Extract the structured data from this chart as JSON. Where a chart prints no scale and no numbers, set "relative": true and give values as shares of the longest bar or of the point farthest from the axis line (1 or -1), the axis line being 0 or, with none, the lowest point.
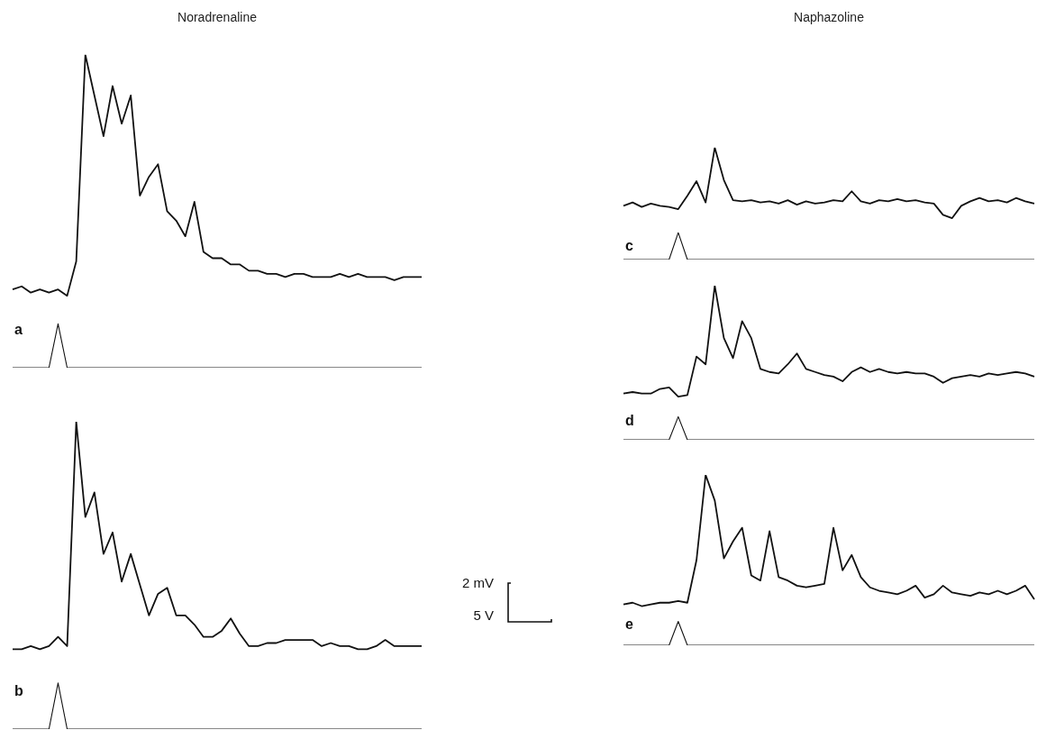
{
  "chart_data": [
    {
      "type": "line",
      "title": "Noradrenaline",
      "relative": true,
      "legend": false,
      "tick_labels": false,
      "marker": "none",
      "annotations": [
        "a"
      ],
      "categories": [
        null,
        null,
        null,
        null,
        null,
        null,
        null,
        null,
        null,
        null,
        null,
        null,
        null,
        null,
        null,
        null,
        null,
        null,
        null,
        null,
        null,
        null,
        null,
        null,
        null,
        null,
        null,
        null,
        null,
        null,
        null,
        null,
        null,
        null,
        null,
        null,
        null,
        null,
        null,
        null,
        null,
        null,
        null,
        null,
        null,
        null
      ],
      "series": [
        {
          "color": "#111111",
          "values": [
            0.25,
            0.26,
            0.24,
            0.25,
            0.24,
            0.25,
            0.23,
            0.34,
            1,
            0.87,
            0.74,
            0.9,
            0.78,
            0.87,
            0.55,
            0.61,
            0.65,
            0.5,
            0.47,
            0.42,
            0.53,
            0.37,
            0.35,
            0.35,
            0.33,
            0.33,
            0.31,
            0.31,
            0.3,
            0.3,
            0.29,
            0.3,
            0.3,
            0.29,
            0.29,
            0.29,
            0.3,
            0.29,
            0.3,
            0.29,
            0.29,
            0.29,
            0.28,
            0.29,
            0.29,
            0.29
          ]
        },
        {
          "color": "#111111",
          "values": [
            0,
            0,
            0,
            0,
            0,
            0.14,
            0,
            0,
            0,
            0,
            0,
            0,
            0,
            0,
            0,
            0,
            0,
            0,
            0,
            0,
            0,
            0,
            0,
            0,
            0,
            0,
            0,
            0,
            0,
            0,
            0,
            0,
            0,
            0,
            0,
            0,
            0,
            0,
            0,
            0,
            0,
            0,
            0,
            0,
            0,
            0
          ]
        }
      ]
    },
    {
      "type": "line",
      "relative": true,
      "legend": false,
      "tick_labels": false,
      "marker": "none",
      "annotations": [
        "b"
      ],
      "categories": [
        null,
        null,
        null,
        null,
        null,
        null,
        null,
        null,
        null,
        null,
        null,
        null,
        null,
        null,
        null,
        null,
        null,
        null,
        null,
        null,
        null,
        null,
        null,
        null,
        null,
        null,
        null,
        null,
        null,
        null,
        null,
        null,
        null,
        null,
        null,
        null,
        null,
        null,
        null,
        null,
        null,
        null,
        null,
        null,
        null,
        null
      ],
      "series": [
        {
          "color": "#111111",
          "values": [
            0.26,
            0.26,
            0.27,
            0.26,
            0.27,
            0.3,
            0.27,
            1,
            0.69,
            0.77,
            0.57,
            0.64,
            0.48,
            0.57,
            0.47,
            0.37,
            0.44,
            0.46,
            0.37,
            0.37,
            0.34,
            0.3,
            0.3,
            0.32,
            0.36,
            0.31,
            0.27,
            0.27,
            0.28,
            0.28,
            0.29,
            0.29,
            0.29,
            0.29,
            0.27,
            0.28,
            0.27,
            0.27,
            0.26,
            0.26,
            0.27,
            0.29,
            0.27,
            0.27,
            0.27,
            0.27
          ]
        },
        {
          "color": "#111111",
          "values": [
            0,
            0,
            0,
            0,
            0,
            0.15,
            0,
            0,
            0,
            0,
            0,
            0,
            0,
            0,
            0,
            0,
            0,
            0,
            0,
            0,
            0,
            0,
            0,
            0,
            0,
            0,
            0,
            0,
            0,
            0,
            0,
            0,
            0,
            0,
            0,
            0,
            0,
            0,
            0,
            0,
            0,
            0,
            0,
            0,
            0,
            0
          ]
        }
      ]
    },
    {
      "type": "line",
      "title": "Naphazoline",
      "relative": true,
      "legend": false,
      "tick_labels": false,
      "marker": "none",
      "annotations": [
        "c"
      ],
      "categories": [
        null,
        null,
        null,
        null,
        null,
        null,
        null,
        null,
        null,
        null,
        null,
        null,
        null,
        null,
        null,
        null,
        null,
        null,
        null,
        null,
        null,
        null,
        null,
        null,
        null,
        null,
        null,
        null,
        null,
        null,
        null,
        null,
        null,
        null,
        null,
        null,
        null,
        null,
        null,
        null,
        null,
        null,
        null,
        null,
        null,
        null
      ],
      "series": [
        {
          "color": "#111111",
          "values": [
            0.48,
            0.51,
            0.47,
            0.5,
            0.48,
            0.47,
            0.45,
            0.57,
            0.7,
            0.51,
            1,
            0.71,
            0.53,
            0.52,
            0.53,
            0.51,
            0.52,
            0.5,
            0.53,
            0.49,
            0.52,
            0.5,
            0.51,
            0.53,
            0.52,
            0.61,
            0.52,
            0.5,
            0.53,
            0.52,
            0.54,
            0.52,
            0.53,
            0.51,
            0.5,
            0.4,
            0.37,
            0.48,
            0.52,
            0.55,
            0.52,
            0.53,
            0.51,
            0.55,
            0.52,
            0.5
          ]
        },
        {
          "color": "#111111",
          "values": [
            0,
            0,
            0,
            0,
            0,
            0,
            0.24,
            0,
            0,
            0,
            0,
            0,
            0,
            0,
            0,
            0,
            0,
            0,
            0,
            0,
            0,
            0,
            0,
            0,
            0,
            0,
            0,
            0,
            0,
            0,
            0,
            0,
            0,
            0,
            0,
            0,
            0,
            0,
            0,
            0,
            0,
            0,
            0,
            0,
            0,
            0
          ]
        }
      ]
    },
    {
      "type": "line",
      "relative": true,
      "legend": false,
      "tick_labels": false,
      "marker": "none",
      "annotations": [
        "d"
      ],
      "categories": [
        null,
        null,
        null,
        null,
        null,
        null,
        null,
        null,
        null,
        null,
        null,
        null,
        null,
        null,
        null,
        null,
        null,
        null,
        null,
        null,
        null,
        null,
        null,
        null,
        null,
        null,
        null,
        null,
        null,
        null,
        null,
        null,
        null,
        null,
        null,
        null,
        null,
        null,
        null,
        null,
        null,
        null,
        null,
        null,
        null,
        null
      ],
      "series": [
        {
          "color": "#111111",
          "values": [
            0.3,
            0.31,
            0.3,
            0.3,
            0.33,
            0.34,
            0.28,
            0.29,
            0.54,
            0.49,
            1,
            0.66,
            0.53,
            0.77,
            0.66,
            0.46,
            0.44,
            0.43,
            0.49,
            0.56,
            0.46,
            0.44,
            0.42,
            0.41,
            0.38,
            0.44,
            0.47,
            0.44,
            0.46,
            0.44,
            0.43,
            0.44,
            0.43,
            0.43,
            0.41,
            0.37,
            0.4,
            0.41,
            0.42,
            0.41,
            0.43,
            0.42,
            0.43,
            0.44,
            0.43,
            0.41
          ]
        },
        {
          "color": "#111111",
          "values": [
            0,
            0,
            0,
            0,
            0,
            0,
            0.15,
            0,
            0,
            0,
            0,
            0,
            0,
            0,
            0,
            0,
            0,
            0,
            0,
            0,
            0,
            0,
            0,
            0,
            0,
            0,
            0,
            0,
            0,
            0,
            0,
            0,
            0,
            0,
            0,
            0,
            0,
            0,
            0,
            0,
            0,
            0,
            0,
            0,
            0,
            0
          ]
        }
      ]
    },
    {
      "type": "line",
      "relative": true,
      "legend": false,
      "tick_labels": false,
      "marker": "none",
      "annotations": [
        "e"
      ],
      "categories": [
        null,
        null,
        null,
        null,
        null,
        null,
        null,
        null,
        null,
        null,
        null,
        null,
        null,
        null,
        null,
        null,
        null,
        null,
        null,
        null,
        null,
        null,
        null,
        null,
        null,
        null,
        null,
        null,
        null,
        null,
        null,
        null,
        null,
        null,
        null,
        null,
        null,
        null,
        null,
        null,
        null,
        null,
        null,
        null,
        null,
        null
      ],
      "series": [
        {
          "color": "#111111",
          "values": [
            0.24,
            0.25,
            0.23,
            0.24,
            0.25,
            0.25,
            0.26,
            0.25,
            0.5,
            1,
            0.85,
            0.51,
            0.61,
            0.69,
            0.41,
            0.38,
            0.67,
            0.4,
            0.38,
            0.35,
            0.34,
            0.35,
            0.36,
            0.69,
            0.44,
            0.53,
            0.4,
            0.34,
            0.32,
            0.31,
            0.3,
            0.32,
            0.35,
            0.28,
            0.3,
            0.35,
            0.31,
            0.3,
            0.29,
            0.31,
            0.3,
            0.32,
            0.3,
            0.32,
            0.35,
            0.27
          ]
        },
        {
          "color": "#111111",
          "values": [
            0,
            0,
            0,
            0,
            0,
            0,
            0.14,
            0,
            0,
            0,
            0,
            0,
            0,
            0,
            0,
            0,
            0,
            0,
            0,
            0,
            0,
            0,
            0,
            0,
            0,
            0,
            0,
            0,
            0,
            0,
            0,
            0,
            0,
            0,
            0,
            0,
            0,
            0,
            0,
            0,
            0,
            0,
            0,
            0,
            0,
            0
          ]
        }
      ]
    },
    {
      "type": "other",
      "annotations": [
        "2 mV",
        "5 V"
      ]
    }
  ]
}
